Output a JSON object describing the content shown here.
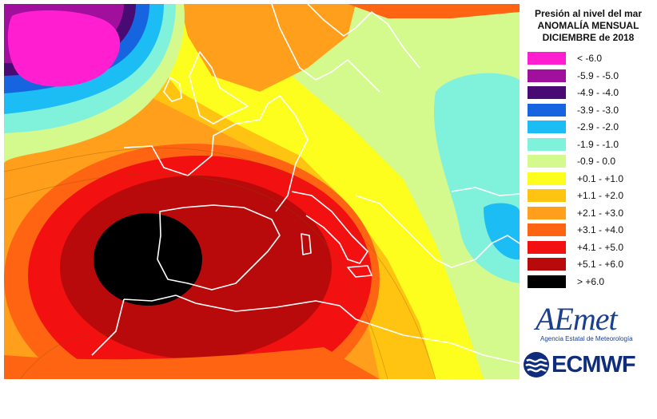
{
  "title": {
    "line1": "Presión al nivel del mar",
    "line2": "ANOMALÍA MENSUAL",
    "line3": "DICIEMBRE de 2018"
  },
  "legend": [
    {
      "label": "< -6.0",
      "color": "#ff1fd0"
    },
    {
      "label": "-5.9 - -5.0",
      "color": "#a0109c"
    },
    {
      "label": "-4.9 - -4.0",
      "color": "#4a0a74"
    },
    {
      "label": "-3.9 - -3.0",
      "color": "#1664e0"
    },
    {
      "label": "-2.9 - -2.0",
      "color": "#1cbcf4"
    },
    {
      "label": "-1.9 - -1.0",
      "color": "#80f2dc"
    },
    {
      "label": "-0.9 - 0.0",
      "color": "#d4fa8e"
    },
    {
      "label": "+0.1 - +1.0",
      "color": "#fefe1e"
    },
    {
      "label": "+1.1 - +2.0",
      "color": "#ffc412"
    },
    {
      "label": "+2.1 - +3.0",
      "color": "#ff9f1c"
    },
    {
      "label": "+3.1 - +4.0",
      "color": "#ff6412"
    },
    {
      "label": "+4.1 - +5.0",
      "color": "#f21010"
    },
    {
      "label": "+5.1 - +6.0",
      "color": "#b80a0a"
    },
    {
      "label": "> +6.0",
      "color": "#000000"
    }
  ],
  "logos": {
    "aemet_word": "AEmet",
    "aemet_caption": "Agencia Estatal de Meteorología",
    "ecmwf_word": "ECMWF"
  }
}
